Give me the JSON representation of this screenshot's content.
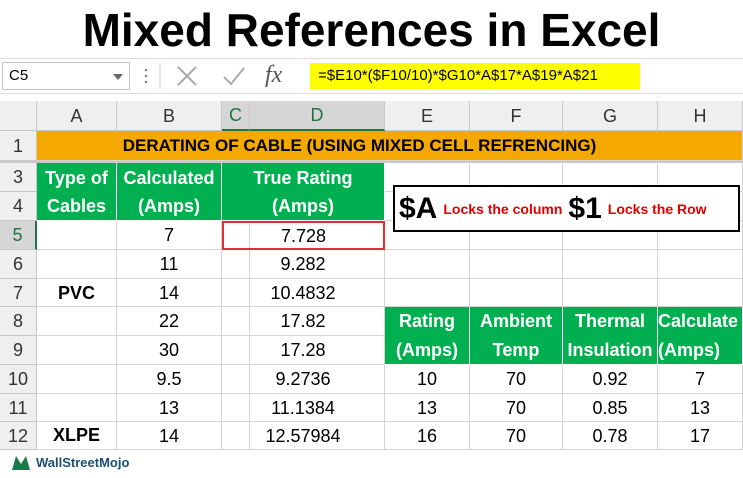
{
  "title": "Mixed References in Excel",
  "formula_bar": {
    "name_box": "C5",
    "fx": "fx",
    "formula": "=$E10*($F10/10)*$G10*A$17*A$19*A$21"
  },
  "column_headers": [
    "A",
    "B",
    "C",
    "D",
    "E",
    "F",
    "G",
    "H"
  ],
  "row_headers": [
    1,
    3,
    4,
    5,
    6,
    7,
    8,
    9,
    10,
    11,
    12
  ],
  "banner": "DERATING OF CABLE (USING MIXED CELL REFRENCING)",
  "main_table": {
    "headers": [
      [
        "Type of",
        "Cables"
      ],
      [
        "Calculated",
        "(Amps)"
      ],
      [
        "True Rating",
        "(Amps)"
      ]
    ],
    "groups": [
      {
        "label": "PVC",
        "rows": [
          [
            7,
            7.728
          ],
          [
            11,
            9.282
          ],
          [
            14,
            10.4832
          ],
          [
            22,
            17.82
          ],
          [
            30,
            17.28
          ]
        ]
      },
      {
        "label": "XLPE",
        "rows": [
          [
            9.5,
            9.2736
          ],
          [
            13,
            11.1384
          ],
          [
            14,
            12.57984
          ]
        ]
      }
    ]
  },
  "callout": {
    "col_ref": "$A",
    "col_text": "Locks the column",
    "row_ref": "$1",
    "row_text": "Locks the Row"
  },
  "side_table": {
    "headers": [
      [
        "Rating",
        "(Amps)"
      ],
      [
        "Ambient",
        "Temp"
      ],
      [
        "Thermal",
        "Insulation"
      ],
      [
        "Calculate",
        "(Amps)"
      ]
    ],
    "rows": [
      [
        10,
        70,
        0.92,
        7
      ],
      [
        13,
        70,
        0.85,
        13
      ],
      [
        16,
        70,
        0.78,
        17
      ]
    ]
  },
  "watermark": "WallStreetMojo"
}
